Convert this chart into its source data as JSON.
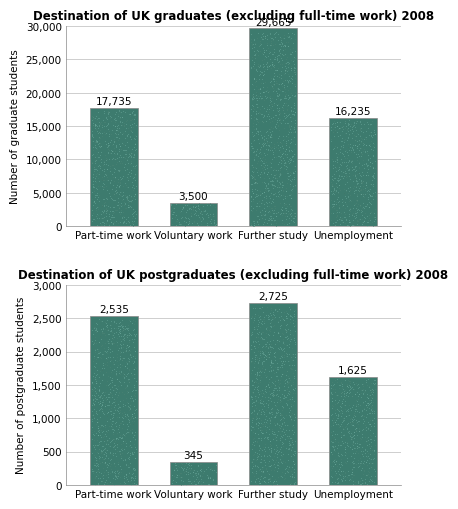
{
  "grad_title": "Destination of UK graduates (excluding full-time work) 2008",
  "postgrad_title": "Destination of UK postgraduates (excluding full-time work) 2008",
  "categories": [
    "Part-time work",
    "Voluntary work",
    "Further study",
    "Unemployment"
  ],
  "grad_values": [
    17735,
    3500,
    29665,
    16235
  ],
  "postgrad_values": [
    2535,
    345,
    2725,
    1625
  ],
  "grad_labels": [
    "17,735",
    "3,500",
    "29,665",
    "16,235"
  ],
  "postgrad_labels": [
    "2,535",
    "345",
    "2,725",
    "1,625"
  ],
  "grad_ylabel": "Number of graduate students",
  "postgrad_ylabel": "Number of postgraduate students",
  "grad_ylim": [
    0,
    30000
  ],
  "postgrad_ylim": [
    0,
    3000
  ],
  "grad_yticks": [
    0,
    5000,
    10000,
    15000,
    20000,
    25000,
    30000
  ],
  "postgrad_yticks": [
    0,
    500,
    1000,
    1500,
    2000,
    2500,
    3000
  ],
  "bar_color": "#4a8878",
  "bar_edge_color": "#777777",
  "background_color": "#ffffff",
  "title_fontsize": 8.5,
  "label_fontsize": 7.5,
  "tick_fontsize": 7.5,
  "ylabel_fontsize": 7.5
}
